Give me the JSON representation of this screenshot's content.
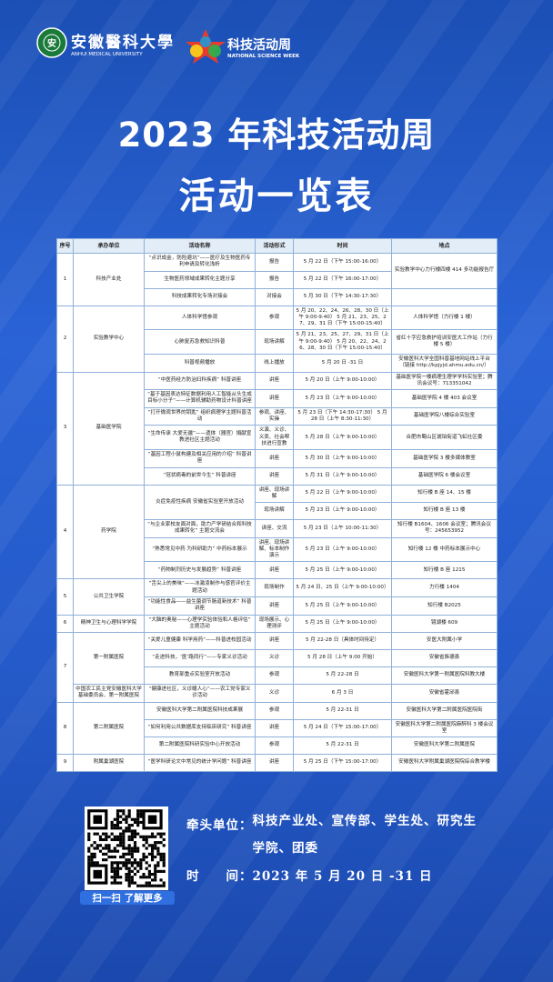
{
  "header": {
    "university": "安徽醫科大學",
    "university_en": "ANHUI MEDICAL UNIVERSITY",
    "week": "科技活动周",
    "week_en": "NATIONAL SCIENCE WEEK",
    "title_line1": "2023 年科技活动周",
    "title_line2": "活动一览表"
  },
  "table": {
    "columns": [
      "序号",
      "承办单位",
      "活动名称",
      "活动形式",
      "时间",
      "地点"
    ],
    "groups": [
      {
        "no": "1",
        "units": [
          {
            "name": "科技产业处",
            "activities": [
              {
                "name": "“点识成金，防险避坑”——医疗及生物医药专利申请及转化浅析",
                "form": "报告",
                "time": "5 月 22 日（下午 15:00-16:00）",
                "place": "实验教学中心力行楼四楼 414 多功能报告厅"
              },
              {
                "name": "生物医药领域成果转化主题分享",
                "form": "报告",
                "time": "5 月 22 日（下午 16:00-17:00）"
              },
              {
                "name": "科技成果转化专场对接会",
                "form": "对接会",
                "time": "5 月 30 日（下午 14:30-17:30）",
                "place": null
              }
            ]
          }
        ]
      },
      {
        "no": "2",
        "units": [
          {
            "name": "实验教学中心",
            "activities": [
              {
                "name": "人体科学馆参观",
                "form": "参观",
                "time": "5 月 20、22、24、26、28、30 日（上午 9:00-9:40） 5 月 21、23、25、27、29、31 日（下午 15:00-15:40）",
                "place": "人体科学馆（力行楼 1 楼）"
              },
              {
                "name": "心肺复苏急救知识科普",
                "form": "现场讲解",
                "time": "5 月 21、23、25、27、29、31 日（上午 9:00-9:40） 5 月 20、22、24、26、28、30 日（下午 15:00-15:40）",
                "place": "省红十字应急救护培训安医大工作站（力行楼 5 楼）"
              },
              {
                "name": "科普视频播放",
                "form": "线上播放",
                "time": "5 月 20 日 -31 日",
                "place": "安徽医科大学全国科普基地网站线上平台（链接 http://kpjyjd.ahmu.edu.cn/）"
              }
            ]
          }
        ]
      },
      {
        "no": "3",
        "units": [
          {
            "name": "基础医学院",
            "activities": [
              {
                "name": "“中医药经方防治妇科疾病” 科普讲座",
                "form": "讲座",
                "time": "5 月 20 日（上午 9:00-10:00）",
                "place": "基础医学院一楼病理生理学学科实验室；腾讯会议号：713351042"
              },
              {
                "name": "“基于基因表达特征数据利用人工智能从头生成目标小分子”——计算机辅助药物设计科普讲座",
                "form": "讲座",
                "time": "5 月 23 日（上午 9:00-10:00）",
                "place": "基础医学院 4 楼 403 会议室"
              },
              {
                "name": "“打开微观世界的钥匙” 组织病理学主题科普活动",
                "form": "参观、讲座、实操",
                "time": "5 月 23 日（下午 14:30-17:30） 5 月 28 日（上午 8:30-11:30）",
                "place": "基础医学院八楼综合实验室"
              },
              {
                "name": "“生命传承 大爱无疆”——遗体（器官）捐献宣教进社区主题活动",
                "form": "义演、义诊、义卖、社会帮扶进行宣教",
                "time": "5 月 28 日（上午 9:00-10:00）",
                "place": "合肥市蜀山区琥珀街道飞虹社区委"
              },
              {
                "name": "“基因工程小鼠构建及相关应用的介绍” 科普讲座",
                "form": "讲座",
                "time": "5 月 30 日（上午 9:00-10:00）",
                "place": "基础医学院 3 楼多媒体教室"
              },
              {
                "name": "“冠状病毒的前世今生” 科普讲座",
                "form": "讲座",
                "time": "5 月 31 日（上午 9:00-10:00）",
                "place": "基础医学院 6 楼会议室"
              }
            ]
          }
        ]
      },
      {
        "no": "4",
        "units": [
          {
            "name": "药学院",
            "activities": [
              {
                "name": "炎症免疫性疾病 安徽省实验室开放活动",
                "form": "讲座、现场讲解",
                "time": "5 月 22 日（上午 9:00-10:00）",
                "place": "知行楼 B 座 14、15 楼"
              },
              {
                "form": "现场讲解",
                "time": "5 月 23 日（上午 9:00-10:00）",
                "place": "知行楼 B 座 13 楼"
              },
              {
                "name": "“与企业家校友面对面，助力产学研结合和科技成果转化” 主题交流会",
                "form": "讲座、交流",
                "time": "5 月 23 日（上午 10:00-11:30）",
                "place": "知行楼 B1604、1606 会议室；腾讯会议号：245653952"
              },
              {
                "name": "“熟悉常见中药 为科研助力” 中药标本展示",
                "form": "讲座、现场讲解、标本制作演示",
                "time": "5 月 23 日（上午 9:00-10:00）",
                "place": "知行楼 12 楼 中药标本展示中心"
              },
              {
                "name": "“药物制剂历史与发展趋势” 科普讲座",
                "form": "讲座",
                "time": "5 月 25 日（上午 9:00-10:00）",
                "place": "知行楼 B 座 1215"
              }
            ]
          }
        ]
      },
      {
        "no": "5",
        "units": [
          {
            "name": "公共卫生学院",
            "activities": [
              {
                "name": "“舌尖上的美味”——冰激凌制作与感官评价主题活动",
                "form": "现场制作",
                "time": "5 月 24 日、25 日（上午 9:00-10:00）",
                "place": "力行楼 1404"
              },
              {
                "name": "“功能性食品——益生菌调节肠道新技术” 科普讲座",
                "form": "讲座",
                "time": "5 月 25 日（上午 9:00-10:00）",
                "place": "知行楼 B2025"
              }
            ]
          }
        ]
      },
      {
        "no": "6",
        "units": [
          {
            "name": "精神卫生与心理科学学院",
            "activities": [
              {
                "name": "“大脑的奥秘——心理学实验体验和人格评估” 主题活动",
                "form": "现场展示、心理测评",
                "time": "5 月 25 日（上午 9:00-10:00）",
                "place": "镜湖楼 609"
              }
            ]
          }
        ]
      },
      {
        "no": "7",
        "units": [
          {
            "name": "第一附属医院",
            "activities": [
              {
                "name": "“关爱儿童健康 科学用药”——科普进校园活动",
                "form": "讲座",
                "time": "5 月 22-28 日（具体时间待定）",
                "place": "安医大附属小学"
              },
              {
                "name": "“走进科技，‘医’路同行”——专家义诊活动",
                "form": "义诊",
                "time": "5 月 28 日（上午 9:00 开始）",
                "place": "安徽省旌德县"
              },
              {
                "name": "教育部重点实验室开放活动",
                "form": "参观",
                "time": "5 月 22-28 日",
                "place": "安徽医科大学第一附属医院科教大楼"
              }
            ]
          },
          {
            "name": "中国农工民主党安徽医科大学基础委员会、第一附属医院",
            "activities": [
              {
                "name": "“健康进社区，义诊暖人心”——农工党专家义诊活动",
                "form": "义诊",
                "time": "6 月 3 日",
                "place": "安徽省霍邱县"
              }
            ]
          }
        ]
      },
      {
        "no": "8",
        "units": [
          {
            "name": "第二附属医院",
            "activities": [
              {
                "name": "安徽医科大学第二附属医院科技成果展",
                "form": "参观",
                "time": "5 月 22-31 日",
                "place": "安徽医科大学第二附属医院医院街"
              },
              {
                "name": "“如何利用公共数据库支持临床研究” 科普讲座",
                "form": "讲座",
                "time": "5 月 24 日（下午 15:00-17:00）",
                "place": "安徽医科大学第二附属医院麻醉科 3 楼会议室"
              },
              {
                "name": "第二附属医院科研实验中心开放活动",
                "form": "参观",
                "time": "5 月 22-31 日",
                "place": "安徽医科大学第二附属医院"
              }
            ]
          }
        ]
      },
      {
        "no": "9",
        "units": [
          {
            "name": "附属巢湖医院",
            "activities": [
              {
                "name": "“医学科研论文中常见的统计学问题” 科普讲座",
                "form": "讲座",
                "time": "5 月 25 日（下午 15:00-17:00）",
                "place": "安徽医科大学附属巢湖医院院综合教学楼"
              }
            ]
          }
        ]
      }
    ]
  },
  "footer": {
    "qr_caption": "扫一扫 了解更多",
    "lead_label": "牵头单位：",
    "lead_value": "科技产业处、宣传部、学生处、研究生学院、团委",
    "time_label": "时　　间：",
    "time_value": "2023 年 5 月 20 日 -31 日"
  }
}
